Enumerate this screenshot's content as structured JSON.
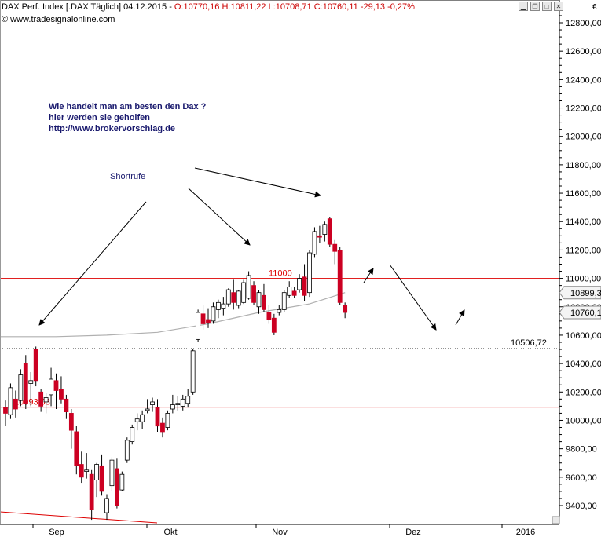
{
  "header": {
    "symbol_info": "DAX Perf. Index [.DAX  Täglich] 04.12.2015 - ",
    "ohlc_text": "O:10770,16 H:10811,22 L:10708,71 C:10760,11 -29,13 -0,27%",
    "watermark": "www.tradesignalonline.com",
    "currency": "€"
  },
  "annotations": {
    "note_lines": [
      "Wie handelt man am besten  den Dax ?",
      "hier werden sie geholfen",
      "http://www.brokervorschlag.de"
    ],
    "shortrufe": "Shortrufe"
  },
  "colors": {
    "bull": "#ffffff",
    "bear": "#cc0022",
    "level_line": "#dd0000",
    "ma_line": "#b0b0b0",
    "arrow": "#000000"
  },
  "chart_data": {
    "type": "candlestick",
    "title": "DAX Perf. Index [.DAX  Täglich]",
    "ylim": [
      9260,
      12980
    ],
    "y_ticks": [
      9400,
      9600,
      9800,
      10000,
      10200,
      10400,
      10600,
      10800,
      11000,
      11200,
      11400,
      11600,
      11800,
      12000,
      12200,
      12400,
      12600,
      12800
    ],
    "y_tick_labels": [
      "9400,00",
      "9600,00",
      "9800,00",
      "10000,00",
      "10200,00",
      "10400,00",
      "10600,00",
      "10800,00",
      "11000,00",
      "11200,00",
      "11400,00",
      "11600,00",
      "11800,00",
      "12000,00",
      "12200,00",
      "12400,00",
      "12600,00",
      "12800,00"
    ],
    "x_labels": [
      "Sep",
      "Okt",
      "Nov",
      "Dez",
      "2016"
    ],
    "levels": [
      {
        "value": 11000,
        "label": "11000"
      },
      {
        "value": 10093,
        "label": "10093,03"
      },
      {
        "value": 10506.72,
        "label": "10506,72",
        "dotted": true
      }
    ],
    "price_tags": [
      {
        "value": 10899.3,
        "label": "10899,3"
      },
      {
        "value": 10760.1,
        "label": "10760,1"
      }
    ],
    "candles": [
      {
        "o": 10090,
        "h": 10140,
        "l": 9960,
        "c": 10050
      },
      {
        "o": 10040,
        "h": 10260,
        "l": 10010,
        "c": 10230
      },
      {
        "o": 10150,
        "h": 10210,
        "l": 10020,
        "c": 10080
      },
      {
        "o": 10140,
        "h": 10360,
        "l": 10100,
        "c": 10320
      },
      {
        "o": 10400,
        "h": 10460,
        "l": 10080,
        "c": 10120
      },
      {
        "o": 10260,
        "h": 10340,
        "l": 10100,
        "c": 10280
      },
      {
        "o": 10500,
        "h": 10520,
        "l": 10240,
        "c": 10280
      },
      {
        "o": 10200,
        "h": 10220,
        "l": 10060,
        "c": 10100
      },
      {
        "o": 10130,
        "h": 10190,
        "l": 10050,
        "c": 10160
      },
      {
        "o": 10180,
        "h": 10370,
        "l": 10100,
        "c": 10290
      },
      {
        "o": 10280,
        "h": 10330,
        "l": 10080,
        "c": 10210
      },
      {
        "o": 10220,
        "h": 10310,
        "l": 10120,
        "c": 10150
      },
      {
        "o": 10150,
        "h": 10180,
        "l": 10010,
        "c": 10060
      },
      {
        "o": 10050,
        "h": 10080,
        "l": 9800,
        "c": 9930
      },
      {
        "o": 9920,
        "h": 9960,
        "l": 9620,
        "c": 9680
      },
      {
        "o": 9690,
        "h": 9780,
        "l": 9560,
        "c": 9600
      },
      {
        "o": 9640,
        "h": 9770,
        "l": 9590,
        "c": 9650
      },
      {
        "o": 9620,
        "h": 9650,
        "l": 9300,
        "c": 9370
      },
      {
        "o": 9580,
        "h": 9700,
        "l": 9460,
        "c": 9690
      },
      {
        "o": 9680,
        "h": 9760,
        "l": 9470,
        "c": 9500
      },
      {
        "o": 9350,
        "h": 9480,
        "l": 9300,
        "c": 9450
      },
      {
        "o": 9540,
        "h": 9740,
        "l": 9500,
        "c": 9720
      },
      {
        "o": 9660,
        "h": 9730,
        "l": 9380,
        "c": 9400
      },
      {
        "o": 9510,
        "h": 9640,
        "l": 9500,
        "c": 9620
      },
      {
        "o": 9720,
        "h": 9880,
        "l": 9700,
        "c": 9860
      },
      {
        "o": 9850,
        "h": 9970,
        "l": 9830,
        "c": 9950
      },
      {
        "o": 9990,
        "h": 10050,
        "l": 9930,
        "c": 10010
      },
      {
        "o": 9990,
        "h": 10070,
        "l": 9940,
        "c": 10040
      },
      {
        "o": 10070,
        "h": 10150,
        "l": 10050,
        "c": 10080
      },
      {
        "o": 10110,
        "h": 10160,
        "l": 10060,
        "c": 10130
      },
      {
        "o": 10090,
        "h": 10150,
        "l": 9920,
        "c": 9960
      },
      {
        "o": 9980,
        "h": 10020,
        "l": 9880,
        "c": 9920
      },
      {
        "o": 9950,
        "h": 10070,
        "l": 9930,
        "c": 10050
      },
      {
        "o": 10080,
        "h": 10180,
        "l": 10050,
        "c": 10110
      },
      {
        "o": 10110,
        "h": 10170,
        "l": 10070,
        "c": 10120
      },
      {
        "o": 10100,
        "h": 10180,
        "l": 10070,
        "c": 10150
      },
      {
        "o": 10120,
        "h": 10220,
        "l": 10090,
        "c": 10170
      },
      {
        "o": 10200,
        "h": 10500,
        "l": 10180,
        "c": 10490
      },
      {
        "o": 10570,
        "h": 10780,
        "l": 10550,
        "c": 10760
      },
      {
        "o": 10750,
        "h": 10810,
        "l": 10640,
        "c": 10680
      },
      {
        "o": 10710,
        "h": 10790,
        "l": 10650,
        "c": 10690
      },
      {
        "o": 10700,
        "h": 10830,
        "l": 10680,
        "c": 10800
      },
      {
        "o": 10780,
        "h": 10850,
        "l": 10720,
        "c": 10830
      },
      {
        "o": 10790,
        "h": 10870,
        "l": 10740,
        "c": 10820
      },
      {
        "o": 10820,
        "h": 10930,
        "l": 10800,
        "c": 10920
      },
      {
        "o": 10900,
        "h": 10990,
        "l": 10780,
        "c": 10830
      },
      {
        "o": 10810,
        "h": 10920,
        "l": 10790,
        "c": 10910
      },
      {
        "o": 10830,
        "h": 10990,
        "l": 10820,
        "c": 10970
      },
      {
        "o": 10860,
        "h": 11050,
        "l": 10850,
        "c": 11020
      },
      {
        "o": 10950,
        "h": 10980,
        "l": 10810,
        "c": 10830
      },
      {
        "o": 10800,
        "h": 10920,
        "l": 10750,
        "c": 10900
      },
      {
        "o": 10880,
        "h": 10960,
        "l": 10760,
        "c": 10780
      },
      {
        "o": 10760,
        "h": 10810,
        "l": 10680,
        "c": 10710
      },
      {
        "o": 10720,
        "h": 10750,
        "l": 10600,
        "c": 10620
      },
      {
        "o": 10760,
        "h": 10810,
        "l": 10740,
        "c": 10780
      },
      {
        "o": 10780,
        "h": 10920,
        "l": 10760,
        "c": 10900
      },
      {
        "o": 10880,
        "h": 10980,
        "l": 10860,
        "c": 10940
      },
      {
        "o": 10910,
        "h": 10940,
        "l": 10860,
        "c": 10880
      },
      {
        "o": 10920,
        "h": 11030,
        "l": 10900,
        "c": 11000
      },
      {
        "o": 11010,
        "h": 11100,
        "l": 10840,
        "c": 10880
      },
      {
        "o": 10900,
        "h": 11200,
        "l": 10870,
        "c": 11180
      },
      {
        "o": 11170,
        "h": 11360,
        "l": 11150,
        "c": 11330
      },
      {
        "o": 11300,
        "h": 11370,
        "l": 11250,
        "c": 11290
      },
      {
        "o": 11310,
        "h": 11400,
        "l": 11260,
        "c": 11380
      },
      {
        "o": 11420,
        "h": 11430,
        "l": 11220,
        "c": 11240
      },
      {
        "o": 11240,
        "h": 11270,
        "l": 11100,
        "c": 11190
      },
      {
        "o": 11200,
        "h": 11220,
        "l": 10810,
        "c": 10830
      },
      {
        "o": 10810,
        "h": 10830,
        "l": 10720,
        "c": 10760
      }
    ],
    "moving_average": [
      {
        "i": 0,
        "v": 10590
      },
      {
        "i": 10,
        "v": 10590
      },
      {
        "i": 20,
        "v": 10600
      },
      {
        "i": 30,
        "v": 10620
      },
      {
        "i": 40,
        "v": 10680
      },
      {
        "i": 50,
        "v": 10760
      },
      {
        "i": 60,
        "v": 10820
      },
      {
        "i": 67,
        "v": 10900
      }
    ]
  }
}
